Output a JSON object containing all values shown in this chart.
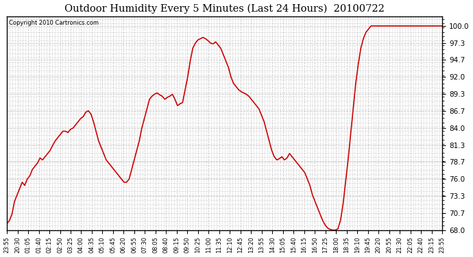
{
  "title": "Outdoor Humidity Every 5 Minutes (Last 24 Hours)  20100722",
  "copyright_text": "Copyright 2010 Cartronics.com",
  "line_color": "#cc0000",
  "bg_color": "#ffffff",
  "grid_color": "#c8c8c8",
  "ylim": [
    68.0,
    101.5
  ],
  "yticks": [
    68.0,
    70.7,
    73.3,
    76.0,
    78.7,
    81.3,
    84.0,
    86.7,
    89.3,
    92.0,
    94.7,
    97.3,
    100.0
  ],
  "xtick_labels": [
    "23:55",
    "20:30",
    "01:05",
    "01:40",
    "02:15",
    "02:50",
    "03:25",
    "04:00",
    "04:35",
    "05:10",
    "05:45",
    "06:20",
    "06:55",
    "07:30",
    "08:05",
    "08:40",
    "09:15",
    "09:50",
    "10:25",
    "11:00",
    "11:35",
    "12:10",
    "12:45",
    "13:20",
    "13:55",
    "14:30",
    "15:05",
    "15:40",
    "16:15",
    "16:50",
    "17:25",
    "18:00",
    "18:35",
    "19:10",
    "19:45",
    "20:20",
    "20:55",
    "21:30",
    "22:05",
    "22:40",
    "23:15",
    "23:55"
  ],
  "humidity_values": [
    69.0,
    69.5,
    70.5,
    72.5,
    73.5,
    74.5,
    75.5,
    75.0,
    76.0,
    76.5,
    77.5,
    78.0,
    78.5,
    79.3,
    79.0,
    79.5,
    80.0,
    80.5,
    81.3,
    82.0,
    82.5,
    83.0,
    83.5,
    83.5,
    83.3,
    83.8,
    84.0,
    84.5,
    85.0,
    85.5,
    85.8,
    86.5,
    86.7,
    86.2,
    85.0,
    83.5,
    82.0,
    81.0,
    80.0,
    79.0,
    78.5,
    78.0,
    77.5,
    77.0,
    76.5,
    76.0,
    75.5,
    75.5,
    76.0,
    77.5,
    79.0,
    80.5,
    82.0,
    84.0,
    85.5,
    87.0,
    88.5,
    89.0,
    89.3,
    89.5,
    89.2,
    89.0,
    88.5,
    88.8,
    89.0,
    89.3,
    88.5,
    87.5,
    87.8,
    88.0,
    90.0,
    92.0,
    94.5,
    96.5,
    97.3,
    97.8,
    98.0,
    98.2,
    98.0,
    97.7,
    97.3,
    97.2,
    97.5,
    97.0,
    96.5,
    95.5,
    94.5,
    93.5,
    92.0,
    91.0,
    90.5,
    90.0,
    89.7,
    89.5,
    89.3,
    89.0,
    88.5,
    88.0,
    87.5,
    87.0,
    86.0,
    85.0,
    83.5,
    82.0,
    80.5,
    79.5,
    79.0,
    79.2,
    79.5,
    79.0,
    79.3,
    80.0,
    79.5,
    79.0,
    78.5,
    78.0,
    77.5,
    77.0,
    76.0,
    75.0,
    73.5,
    72.5,
    71.5,
    70.5,
    69.5,
    68.8,
    68.3,
    68.1,
    68.0,
    68.0,
    68.2,
    69.5,
    72.0,
    75.5,
    79.0,
    83.0,
    87.0,
    91.0,
    94.0,
    96.5,
    98.0,
    99.0,
    99.5,
    100.0,
    100.0,
    100.0,
    100.0,
    100.0,
    100.0,
    100.0,
    100.0,
    100.0,
    100.0,
    100.0,
    100.0,
    100.0,
    100.0,
    100.0,
    100.0,
    100.0,
    100.0,
    100.0,
    100.0,
    100.0,
    100.0,
    100.0,
    100.0,
    100.0,
    100.0,
    100.0,
    100.0,
    100.0
  ]
}
